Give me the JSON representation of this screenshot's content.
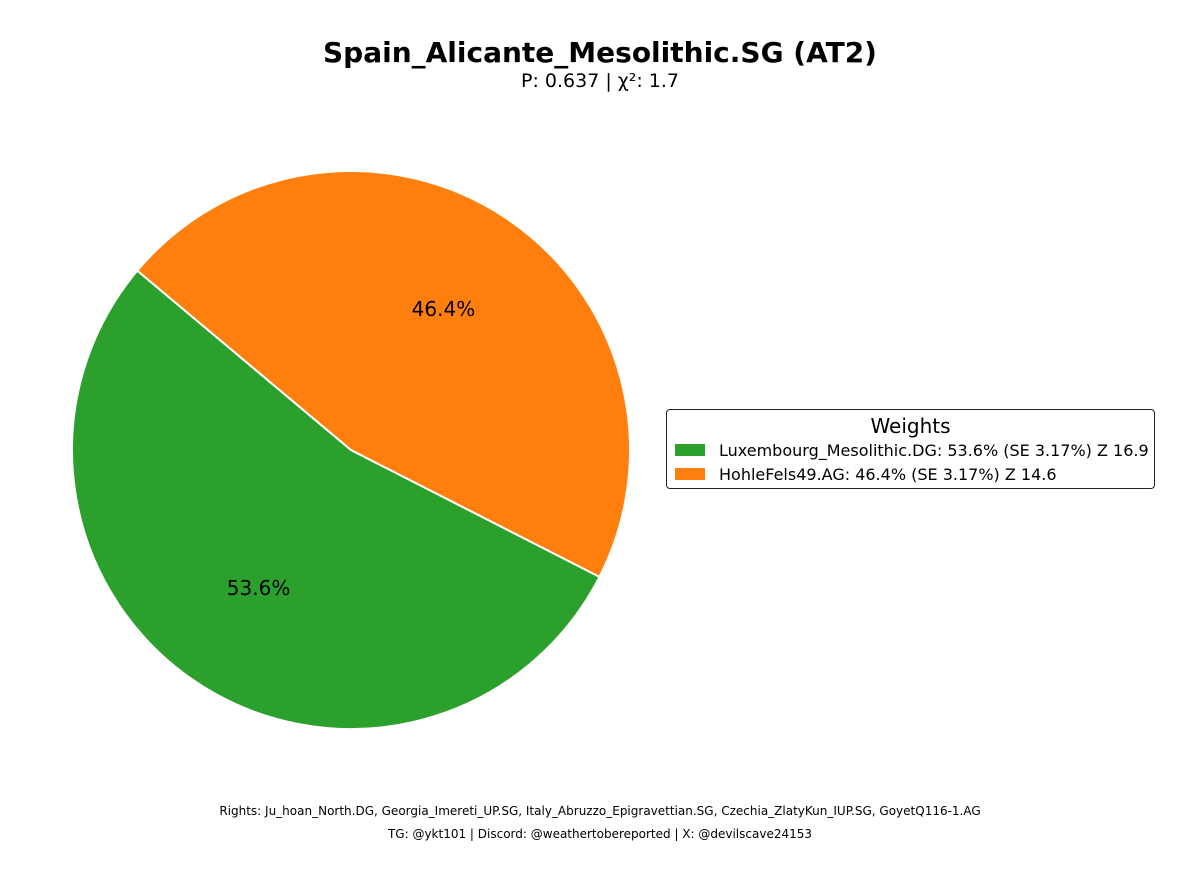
{
  "chart_data": {
    "type": "pie",
    "title": "Spain_Alicante_Mesolithic.SG (AT2)",
    "subtitle": "P: 0.637 | χ²: 1.7",
    "slices": [
      {
        "label": "Luxembourg_Mesolithic.DG",
        "value": 53.6,
        "pct_label": "53.6%",
        "color": "#2ca02c",
        "legend": "Luxembourg_Mesolithic.DG: 53.6% (SE 3.17%) Z 16.9"
      },
      {
        "label": "HohleFels49.AG",
        "value": 46.4,
        "pct_label": "46.4%",
        "color": "#ff7f0e",
        "legend": "HohleFels49.AG: 46.4% (SE 3.17%) Z 14.6"
      }
    ],
    "legend_title": "Weights",
    "legend_placement": "right"
  },
  "footer": {
    "line1": "Rights: Ju_hoan_North.DG, Georgia_Imereti_UP.SG, Italy_Abruzzo_Epigravettian.SG, Czechia_ZlatyKun_IUP.SG, GoyetQ116-1.AG",
    "line2": "TG: @ykt101 | Discord: @weathertobereported | X: @devilscave24153"
  }
}
